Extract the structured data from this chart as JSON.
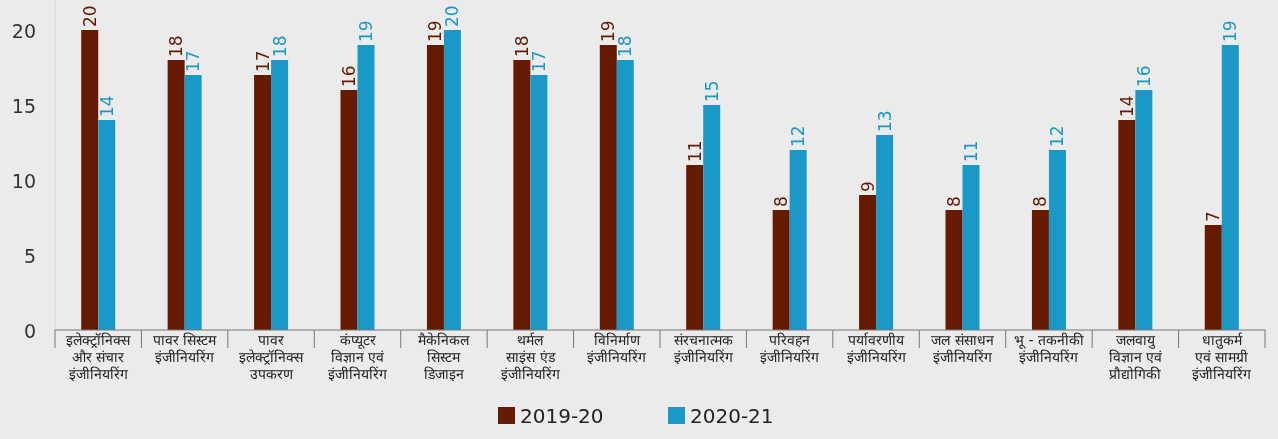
{
  "chart_data": {
    "type": "bar",
    "categories": [
      "इलेक्ट्रॉनिक्स\nऔर संचार\nइंजीनियरिंग",
      "पावर सिस्टम\nइंजीनियरिंग",
      "पावर\nइलेक्ट्रॉनिक्स\nउपकरण",
      "कंप्यूटर\nविज्ञान एवं\nइंजीनियरिंग",
      "मैकेनिकल\nसिस्टम\nडिजाइन",
      "थर्मल\nसाइंस एंड\nइंजीनियरिंग",
      "विनिर्माण\nइंजीनियरिंग",
      "संरचनात्मक\nइंजीनियरिंग",
      "परिवहन\nइंजीनियरिंग",
      "पर्यावरणीय\nइंजीनियरिंग",
      "जल संसाधन\nइंजीनियरिंग",
      "भू - तकनीकी\nइंजीनियरिंग",
      "जलवायु\nविज्ञान एवं\nप्रौद्योगिकी",
      "धातुकर्म\nएवं सामग्री\nइंजीनियरिंग"
    ],
    "series": [
      {
        "name": "2019-20",
        "color": "#661a00",
        "values": [
          20,
          18,
          17,
          16,
          19,
          18,
          19,
          11,
          8,
          9,
          8,
          8,
          14,
          7
        ]
      },
      {
        "name": "2020-21",
        "color": "#1a99c9",
        "values": [
          14,
          17,
          18,
          19,
          20,
          17,
          18,
          15,
          12,
          13,
          11,
          12,
          16,
          19
        ]
      }
    ],
    "data_labels": true,
    "ylim": [
      0,
      22
    ],
    "yticks": [
      0,
      5,
      10,
      15,
      20
    ],
    "grid": false,
    "legend": "bottom"
  }
}
